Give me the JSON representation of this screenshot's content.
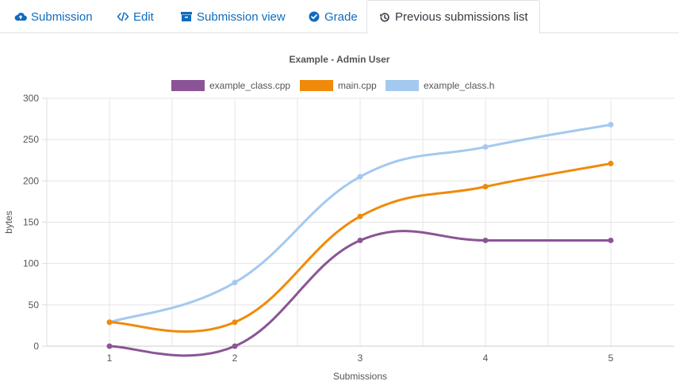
{
  "tabs": [
    {
      "label": "Submission",
      "icon": "cloud-upload-icon"
    },
    {
      "label": "Edit",
      "icon": "code-icon"
    },
    {
      "label": "Submission view",
      "icon": "archive-icon"
    },
    {
      "label": "Grade",
      "icon": "check-circle-icon"
    },
    {
      "label": "Previous submissions list",
      "icon": "history-icon",
      "active": true
    }
  ],
  "chart_data": {
    "type": "line",
    "title": "Example - Admin User",
    "xlabel": "Submissions",
    "ylabel": "bytes",
    "categories": [
      "1",
      "2",
      "3",
      "4",
      "5"
    ],
    "ylim": [
      0,
      300
    ],
    "yticks": [
      "0",
      "50",
      "100",
      "150",
      "200",
      "250",
      "300"
    ],
    "grid": true,
    "legend_position": "top-center",
    "series": [
      {
        "name": "example_class.cpp",
        "color": "#8a5496",
        "values": [
          0,
          0,
          128,
          128,
          128
        ]
      },
      {
        "name": "main.cpp",
        "color": "#f08a0a",
        "values": [
          29,
          29,
          157,
          193,
          221
        ]
      },
      {
        "name": "example_class.h",
        "color": "#a3c9f0",
        "values": [
          29,
          77,
          205,
          241,
          268
        ]
      }
    ]
  }
}
